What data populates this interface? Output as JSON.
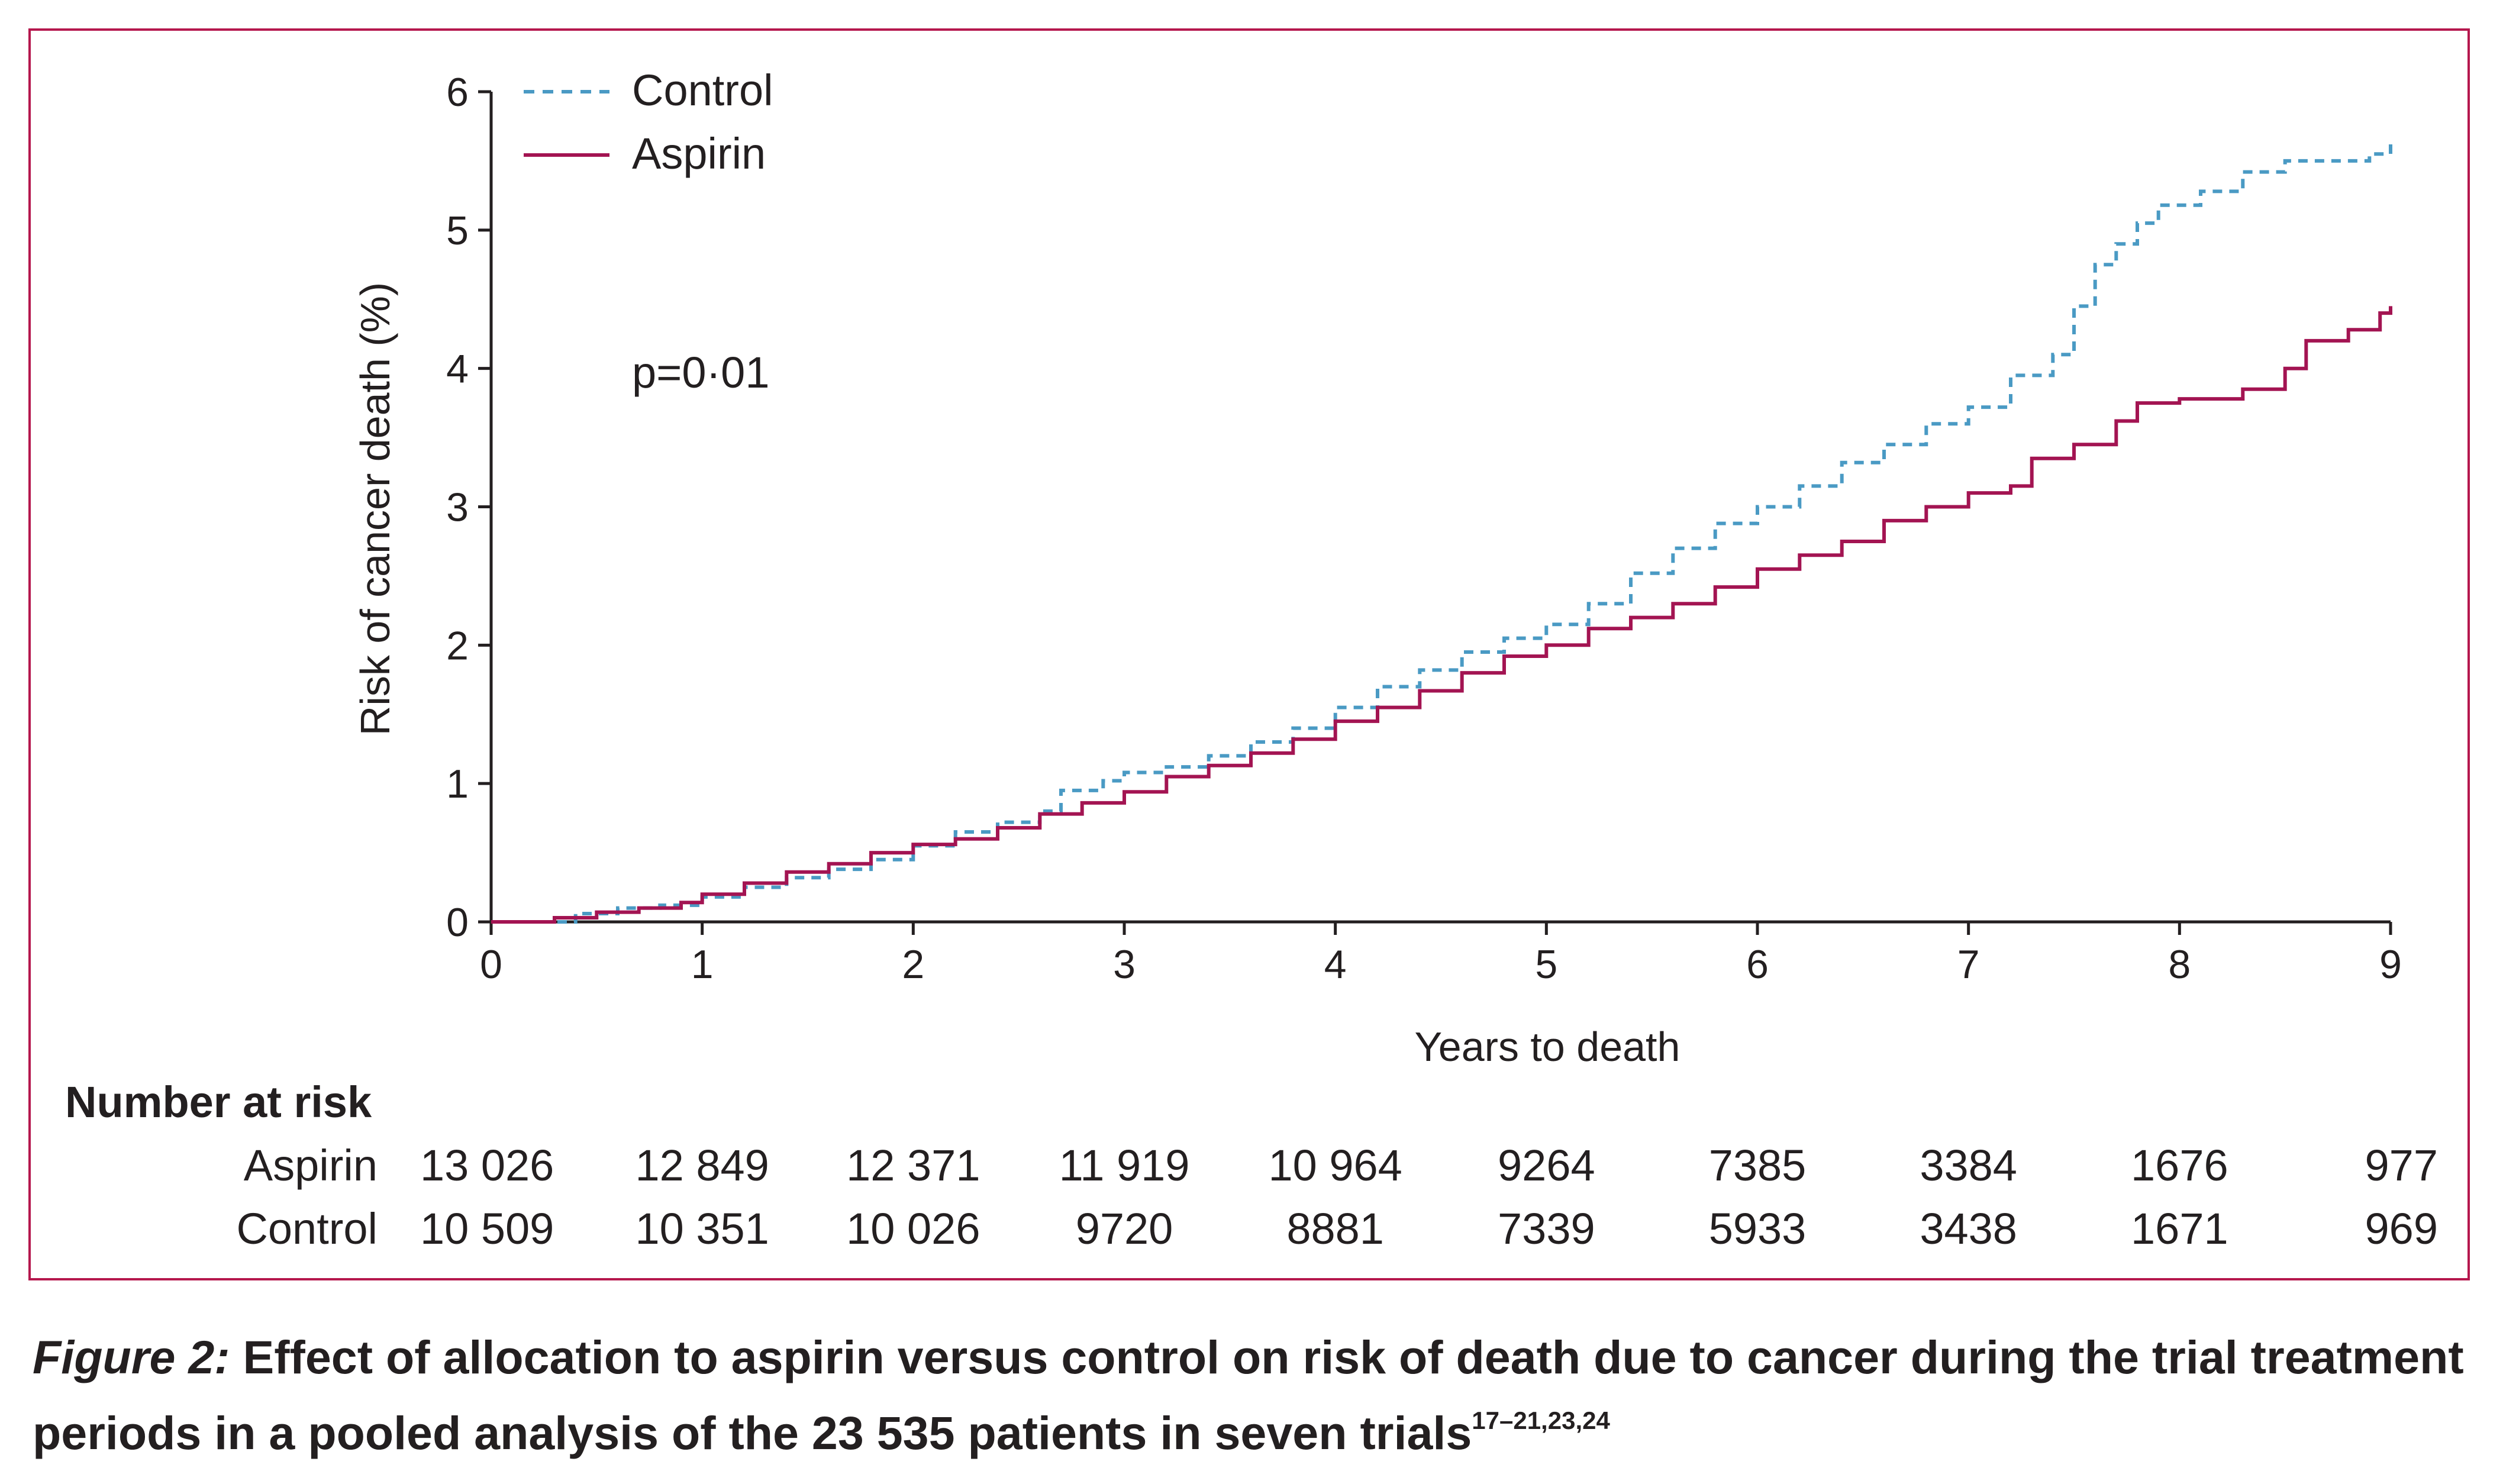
{
  "colors": {
    "frame": "#b5174d",
    "control": "#4a9ac4",
    "aspirin": "#a31452",
    "text": "#231f20"
  },
  "chart_data": {
    "type": "line",
    "step": true,
    "xlabel": "Years to death",
    "ylabel": "Risk of cancer death (%)",
    "xlim": [
      0,
      9
    ],
    "ylim": [
      0,
      6
    ],
    "x_ticks": [
      "0",
      "1",
      "2",
      "3",
      "4",
      "5",
      "6",
      "7",
      "8",
      "9"
    ],
    "y_ticks": [
      "0",
      "1",
      "2",
      "3",
      "4",
      "5",
      "6"
    ],
    "annotation": "p=0·01",
    "legend_position": "top-left",
    "grid": false,
    "series": [
      {
        "name": "Control",
        "style": "dashed",
        "color": "#4a9ac4",
        "points": [
          [
            0,
            0
          ],
          [
            0.4,
            0.06
          ],
          [
            0.6,
            0.1
          ],
          [
            0.8,
            0.12
          ],
          [
            1.0,
            0.18
          ],
          [
            1.2,
            0.25
          ],
          [
            1.4,
            0.32
          ],
          [
            1.6,
            0.38
          ],
          [
            1.8,
            0.45
          ],
          [
            2.0,
            0.55
          ],
          [
            2.2,
            0.65
          ],
          [
            2.4,
            0.72
          ],
          [
            2.6,
            0.8
          ],
          [
            2.7,
            0.95
          ],
          [
            2.9,
            1.02
          ],
          [
            3.0,
            1.08
          ],
          [
            3.2,
            1.12
          ],
          [
            3.4,
            1.2
          ],
          [
            3.6,
            1.3
          ],
          [
            3.8,
            1.4
          ],
          [
            4.0,
            1.55
          ],
          [
            4.2,
            1.7
          ],
          [
            4.4,
            1.82
          ],
          [
            4.6,
            1.95
          ],
          [
            4.8,
            2.05
          ],
          [
            5.0,
            2.15
          ],
          [
            5.2,
            2.3
          ],
          [
            5.4,
            2.52
          ],
          [
            5.6,
            2.7
          ],
          [
            5.8,
            2.88
          ],
          [
            6.0,
            3.0
          ],
          [
            6.2,
            3.15
          ],
          [
            6.4,
            3.32
          ],
          [
            6.6,
            3.45
          ],
          [
            6.8,
            3.6
          ],
          [
            7.0,
            3.72
          ],
          [
            7.2,
            3.95
          ],
          [
            7.4,
            4.1
          ],
          [
            7.5,
            4.45
          ],
          [
            7.6,
            4.75
          ],
          [
            7.7,
            4.9
          ],
          [
            7.8,
            5.05
          ],
          [
            7.9,
            5.18
          ],
          [
            8.1,
            5.28
          ],
          [
            8.3,
            5.42
          ],
          [
            8.5,
            5.5
          ],
          [
            8.9,
            5.55
          ],
          [
            9.0,
            5.65
          ]
        ]
      },
      {
        "name": "Aspirin",
        "style": "solid",
        "color": "#a31452",
        "points": [
          [
            0,
            0
          ],
          [
            0.3,
            0.03
          ],
          [
            0.5,
            0.07
          ],
          [
            0.7,
            0.1
          ],
          [
            0.9,
            0.14
          ],
          [
            1.0,
            0.2
          ],
          [
            1.2,
            0.28
          ],
          [
            1.4,
            0.36
          ],
          [
            1.6,
            0.42
          ],
          [
            1.8,
            0.5
          ],
          [
            2.0,
            0.56
          ],
          [
            2.2,
            0.6
          ],
          [
            2.4,
            0.68
          ],
          [
            2.6,
            0.78
          ],
          [
            2.8,
            0.86
          ],
          [
            3.0,
            0.94
          ],
          [
            3.2,
            1.05
          ],
          [
            3.4,
            1.13
          ],
          [
            3.6,
            1.22
          ],
          [
            3.8,
            1.32
          ],
          [
            4.0,
            1.45
          ],
          [
            4.2,
            1.55
          ],
          [
            4.4,
            1.67
          ],
          [
            4.6,
            1.8
          ],
          [
            4.8,
            1.92
          ],
          [
            5.0,
            2.0
          ],
          [
            5.2,
            2.12
          ],
          [
            5.4,
            2.2
          ],
          [
            5.6,
            2.3
          ],
          [
            5.8,
            2.42
          ],
          [
            6.0,
            2.55
          ],
          [
            6.2,
            2.65
          ],
          [
            6.4,
            2.75
          ],
          [
            6.6,
            2.9
          ],
          [
            6.8,
            3.0
          ],
          [
            7.0,
            3.1
          ],
          [
            7.2,
            3.15
          ],
          [
            7.3,
            3.35
          ],
          [
            7.5,
            3.45
          ],
          [
            7.7,
            3.62
          ],
          [
            7.8,
            3.75
          ],
          [
            8.0,
            3.78
          ],
          [
            8.3,
            3.85
          ],
          [
            8.5,
            4.0
          ],
          [
            8.6,
            4.2
          ],
          [
            8.8,
            4.28
          ],
          [
            8.95,
            4.4
          ],
          [
            9.0,
            4.45
          ]
        ]
      }
    ],
    "number_at_risk": {
      "heading": "Number at risk",
      "rows": [
        {
          "label": "Aspirin",
          "values": [
            "13 026",
            "12 849",
            "12 371",
            "11 919",
            "10 964",
            "9264",
            "7385",
            "3384",
            "1676",
            "977"
          ]
        },
        {
          "label": "Control",
          "values": [
            "10 509",
            "10 351",
            "10 026",
            "9720",
            "8881",
            "7339",
            "5933",
            "3438",
            "1671",
            "969"
          ]
        }
      ]
    }
  },
  "caption": {
    "label": "Figure 2:",
    "text": " Effect of allocation to aspirin versus control on risk of death due to cancer during the trial treatment periods in a pooled analysis of the 23 535 patients in seven trials",
    "refs": "17–21,23,24"
  }
}
